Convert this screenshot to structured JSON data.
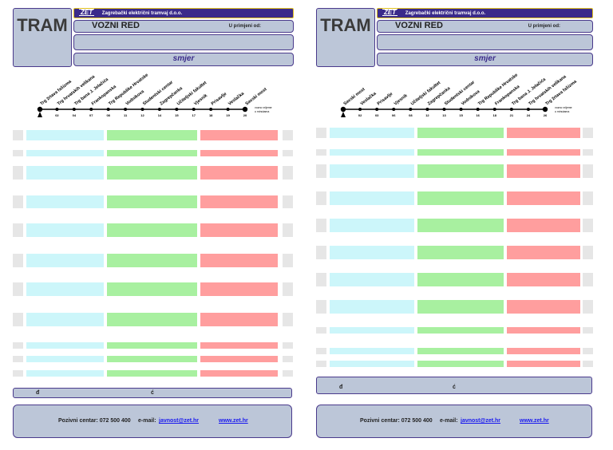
{
  "header": {
    "tram": "TRAM",
    "zet_logo": "ZET",
    "company": "Zagrebački električni tramvaj d.o.o.",
    "vozni_red": "VOZNI RED",
    "u_primjeni": "U primjeni od:",
    "smjer": "smjer"
  },
  "travel_note": "vozno vrijeme u minutama",
  "footer": {
    "col_d": "đ",
    "col_c": "ć",
    "contact": "Pozivni centar: 072 500 400",
    "email_label": "e-mail:",
    "email": "javnost@zet.hr",
    "web": "www.zet.hr"
  },
  "left": {
    "stops": [
      {
        "name": "Trg žrtava fašizma",
        "t": ""
      },
      {
        "name": "Trg hrvatskih velikana",
        "t": "02"
      },
      {
        "name": "Trg bana J. Jelačića",
        "t": "04"
      },
      {
        "name": "Frankopanska",
        "t": "07"
      },
      {
        "name": "Trg Republike Hrvatske",
        "t": "08"
      },
      {
        "name": "Vodnikova",
        "t": "11"
      },
      {
        "name": "Studentski centar",
        "t": "12"
      },
      {
        "name": "Zagrepčanka",
        "t": "14"
      },
      {
        "name": "Učiteljski fakultet",
        "t": "15"
      },
      {
        "name": "Vjesnik",
        "t": "17"
      },
      {
        "name": "Prisavlje",
        "t": "18"
      },
      {
        "name": "Veslačka",
        "t": "19"
      },
      {
        "name": "Savski most",
        "t": "20"
      }
    ]
  },
  "right": {
    "stops": [
      {
        "name": "Savski most",
        "t": ""
      },
      {
        "name": "Veslačka",
        "t": "02"
      },
      {
        "name": "Prisavlje",
        "t": "03"
      },
      {
        "name": "Vjesnik",
        "t": "06"
      },
      {
        "name": "Učiteljski fakultet",
        "t": "08"
      },
      {
        "name": "Zagrepčanka",
        "t": "12"
      },
      {
        "name": "Studentski centar",
        "t": "13"
      },
      {
        "name": "Vodnikova",
        "t": "15"
      },
      {
        "name": "Trg Republike Hrvatske",
        "t": "16"
      },
      {
        "name": "Frankopanska",
        "t": "18"
      },
      {
        "name": "Trg bana J. Jelačića",
        "t": "21"
      },
      {
        "name": "Trg hrvatskih velikana",
        "t": "24"
      },
      {
        "name": "Trg žrtava fašizma",
        "t": "26"
      }
    ]
  },
  "colors": {
    "header_fill": "#bcc6d8",
    "border": "#4a3a8c",
    "column1": "#ccf6fa",
    "column2": "#a8f0a0",
    "column3": "#ff9e9e",
    "side": "#e6e6e6"
  }
}
